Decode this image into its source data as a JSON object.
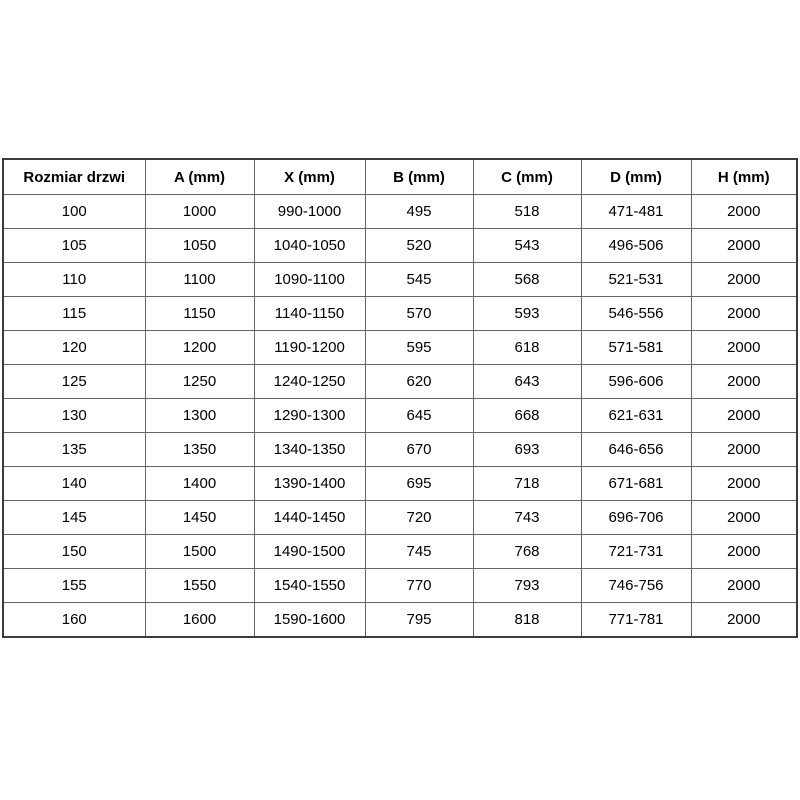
{
  "table": {
    "columns": [
      "Rozmiar drzwi",
      "A (mm)",
      "X (mm)",
      "B (mm)",
      "C (mm)",
      "D (mm)",
      "H (mm)"
    ],
    "rows": [
      [
        "100",
        "1000",
        "990-1000",
        "495",
        "518",
        "471-481",
        "2000"
      ],
      [
        "105",
        "1050",
        "1040-1050",
        "520",
        "543",
        "496-506",
        "2000"
      ],
      [
        "110",
        "1100",
        "1090-1100",
        "545",
        "568",
        "521-531",
        "2000"
      ],
      [
        "115",
        "1150",
        "1140-1150",
        "570",
        "593",
        "546-556",
        "2000"
      ],
      [
        "120",
        "1200",
        "1190-1200",
        "595",
        "618",
        "571-581",
        "2000"
      ],
      [
        "125",
        "1250",
        "1240-1250",
        "620",
        "643",
        "596-606",
        "2000"
      ],
      [
        "130",
        "1300",
        "1290-1300",
        "645",
        "668",
        "621-631",
        "2000"
      ],
      [
        "135",
        "1350",
        "1340-1350",
        "670",
        "693",
        "646-656",
        "2000"
      ],
      [
        "140",
        "1400",
        "1390-1400",
        "695",
        "718",
        "671-681",
        "2000"
      ],
      [
        "145",
        "1450",
        "1440-1450",
        "720",
        "743",
        "696-706",
        "2000"
      ],
      [
        "150",
        "1500",
        "1490-1500",
        "745",
        "768",
        "721-731",
        "2000"
      ],
      [
        "155",
        "1550",
        "1540-1550",
        "770",
        "793",
        "746-756",
        "2000"
      ],
      [
        "160",
        "1600",
        "1590-1600",
        "795",
        "818",
        "771-781",
        "2000"
      ]
    ]
  }
}
